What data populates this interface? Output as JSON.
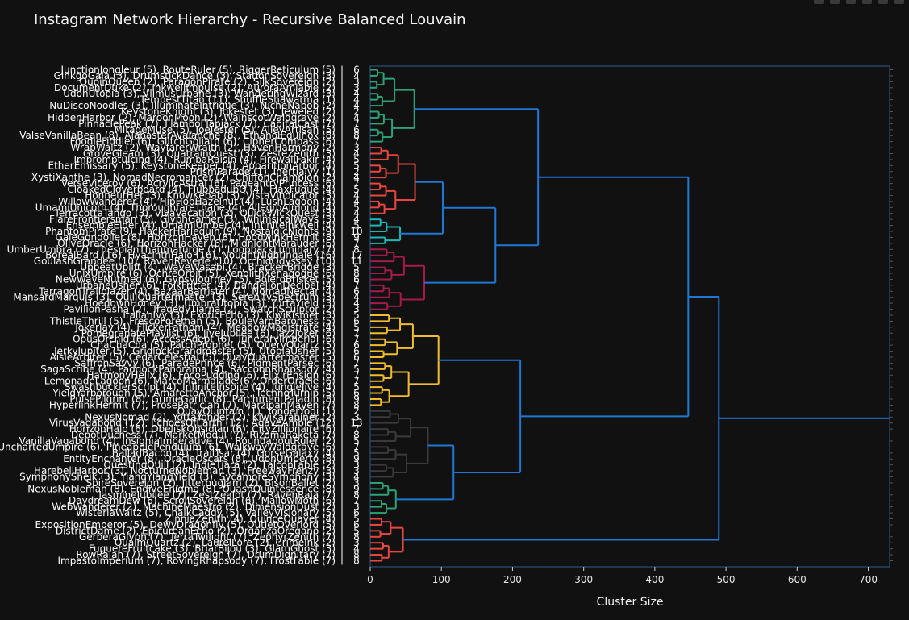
{
  "title": "Instagram Network Hierarchy - Recursive Balanced Louvain",
  "toolbar": {
    "icons": [
      "camera-icon",
      "zoom-icon",
      "pan-icon",
      "zoom-in-icon",
      "zoom-out-icon",
      "reset-axes-icon"
    ]
  },
  "chart_data": {
    "type": "dendrogram",
    "orientation": "horizontal",
    "xlabel": "Cluster Size",
    "xlim": [
      0,
      730
    ],
    "xticks": [
      0,
      100,
      200,
      300,
      400,
      500,
      600,
      700
    ],
    "colors": {
      "background": "#111111",
      "link": "#1f77d4",
      "green": "#2ca275",
      "red": "#e8463f",
      "teal": "#1eb7b7",
      "crimson": "#a31a4b",
      "yellow": "#f2bd2b",
      "dark": "#3a3a3a"
    },
    "leaves": [
      {
        "label": "JunctionJongleur (5), RouteRuler (5), RiggerReticulum (5)",
        "size": 6
      },
      {
        "label": "GinkgoGala (3), DrumstickDance (3), StationSovereign (3)",
        "size": 4
      },
      {
        "label": "QuoinQueen (2), ParagonPirate (2), SilkSovereign (2)",
        "size": 3
      },
      {
        "label": "DocumentDuke (2), InkwellImpulse (2), AuroraAmiable (2)",
        "size": 3
      },
      {
        "label": "UdonUtopia (3), VlimusUrbane (3), WanderingWizard (3)",
        "size": 4
      },
      {
        "label": "TempestTitan (11), ShuffleShawarma (1)",
        "size": 4
      },
      {
        "label": "NuDiscoNoodles (3), IlluminateIntrigue (3), NicheNabob (2)",
        "size": 4
      },
      {
        "label": "KeystoneKnight (3), Jokester (3), Jeweled (2)",
        "size": 2
      },
      {
        "label": "HiddenHarbor (2), MaroonMoon (2), WainscotWaldgrave (2)",
        "size": 4
      },
      {
        "label": "PinnaclePeak (7), FlamboFlapjack (7), CapitalCast (7)",
        "size": 7
      },
      {
        "label": "MirageMuse (5), JoeJester (5), AlleyArtisan (5)",
        "size": 6
      },
      {
        "label": "ValseVanillaBean (8), AlabasterAvalanche (8), EthanolEquinox (8)",
        "size": 8
      },
      {
        "label": "FoodieFiddler (6), GlitchGoliath (6), CipherCompass (6)",
        "size": 7
      },
      {
        "label": "WrapWaltz (2), WayfarerWraith (2), HavenHarmony (2)",
        "size": 3
      },
      {
        "label": "GroveGleam (3), QuatrainQuest (3), ZesteZenith (3)",
        "size": 4
      },
      {
        "label": "ImpromptuIcing (4), RumbaRaisin (4), FirewallFakir (4)",
        "size": 5
      },
      {
        "label": "EtherEmissary (5), KeystoneKeeper (4), ApparitionArbor (4)",
        "size": 5
      },
      {
        "label": "PrismParade (1), InertiaIvy (1)",
        "size": 2
      },
      {
        "label": "XystiXanthe (3), NomadNecromancer (2), ChiffonChampion (2)",
        "size": 4
      },
      {
        "label": "VerseViceroy (6), AcrylicAstral (6), PageantryPrincess (6)",
        "size": 7
      },
      {
        "label": "CloakedCloverboard (4), FlubbadubQ (4), FlaxFugue (4)",
        "size": 5
      },
      {
        "label": "HonneurHer (3), KnowKebab (3), VistaVindicator (3)",
        "size": 4
      },
      {
        "label": "WillowWanderer (4), HipHopHazelnut (4), LushLagoon (4)",
        "size": 4
      },
      {
        "label": "UmamiUnicorn (4), ThoroughfareThane (4), AllegroAlmond (4)",
        "size": 5
      },
      {
        "label": "TerracottaTango (3), VivaVacation (3), QuickWickQuest (3)",
        "size": 4
      },
      {
        "label": "FlareFrontiersman (3), GlyphGamer (3), WhimsicalWays (3)",
        "size": 4
      },
      {
        "label": "EnsembleElder (4), UmamiUmber (4), InfiniteInkwell (4)",
        "size": 5
      },
      {
        "label": "PhantomPirate (9), HackerHarlequin (9), NostalgicNights (9)",
        "size": 10
      },
      {
        "label": "GaleGondolier (8), HorizonHaven (8), HoodwinkHermit (8)",
        "size": 9
      },
      {
        "label": "OliveOracle (6), HorizonHacker (6), MidnightMarauder (6)",
        "size": 7
      },
      {
        "label": "UmberUmbra (7), ThespianThaumaturge (7), LoopbackLuminary (7)",
        "size": 8
      },
      {
        "label": "BorealBard (16), HyacinthHalo (16), NoughtNightingale (16)",
        "size": 17
      },
      {
        "label": "GoulashGrandee (10), RavenReverie (10), OrchidOdyssey (10)",
        "size": 11
      },
      {
        "label": "UpbeatUplift (4), WaveWasabi (4), BrackenBridge (3)",
        "size": 5
      },
      {
        "label": "UnixUmpire (6), OchreOrbit (5), XenolithXenagogue (6)",
        "size": 8
      },
      {
        "label": "NewWaveNutmeg (6), GypsyJourney (5), BoleroBrisket (5)",
        "size": 6
      },
      {
        "label": "UrbaneUsher (6), FolkFritter (4), DandelionDecibel (4)",
        "size": 7
      },
      {
        "label": "TarragonTrailblazer (4), BazaarBarrister (4), NomadNectar (4)",
        "size": 6
      },
      {
        "label": "MansardMarquis (3), QuillQuartermaster (3), SerenitySpectrum (3)",
        "size": 4
      },
      {
        "label": "HoedownHoney (3), UmbraUtopia (3), YurtaYield (3)",
        "size": 4
      },
      {
        "label": "PavilionPasha (2), TragedyTiarna (2), SwatchSculptor (2)",
        "size": 3
      },
      {
        "label": "ItalianIvy (3), ExoticEcho (3), KiwiKismet (3)",
        "size": 5
      },
      {
        "label": "ThistleThrill (5), FrescoForeman (5), BoulevardBaroness (5)",
        "size": 6
      },
      {
        "label": "JokerJay (4), FlickerFathom (4), MeadowMagistrate (4)",
        "size": 5
      },
      {
        "label": "PomegranatePlaylist (6), JiveJubilee (6), JazzJoker (6)",
        "size": 7
      },
      {
        "label": "OpusOrchid (6), AccessAdept (6), TuneraryImperial (6)",
        "size": 7
      },
      {
        "label": "ChaChaCha (5), PatchProphet (5), QueryQuartz (5)",
        "size": 6
      },
      {
        "label": "JerkyJupiter (5), GridlockGrandmaster (5), UtopiaUsher (5)",
        "size": 6
      },
      {
        "label": "AisleArbiter (5), CedarCelestial (5), QuayQuartermaster (5)",
        "size": 6
      },
      {
        "label": "SaffronSavvy (6), ParadePrince (6), PigmentParsec (6)",
        "size": 7
      },
      {
        "label": "SagaScribe (4), PaddockPanorama (4), RaccoonRhapsody (4)",
        "size": 5
      },
      {
        "label": "HarmonyHelix (6), FocoPudding (6), ElixirEnsign (6)",
        "size": 7
      },
      {
        "label": "LemonadeLagoon (6), MarcoMarmalade (6), OrderOracle (6)",
        "size": 7
      },
      {
        "label": "SwashbucklerScript (4), InfiniteInspire (4), JungleJive (4)",
        "size": 5
      },
      {
        "label": "YieldYarborough (5), AmarettoAnchor (5), TechnoTurnip (5)",
        "size": 6
      },
      {
        "label": "PulsePilgrim (8), GrimeGarlic (8), ParchmentPaladin (8)",
        "size": 9
      },
      {
        "label": "HyperlinkHermit (7), ProsePatrician (7), MarzipanMaven (7)",
        "size": 8
      },
      {
        "label": "QuayQuintain (1), YonderYogi (1)",
        "size": 2
      },
      {
        "label": "NexusNomad (2), YottaYonder (2), KiwiKarabiner (2)",
        "size": 3
      },
      {
        "label": "VirusVagabond (12), EchoesOfEarth (12), AgaveAmble (12)",
        "size": 13
      },
      {
        "label": "HorizonHalo (6), ObeliskObsidian (6), CityZillionaire (6)",
        "size": 7
      },
      {
        "label": "DepotDuchess (7), MarketModul (7), RizomaRaketa (7)",
        "size": 8
      },
      {
        "label": "VanillaVagabond (4), InsigniaImperative (4), RoundaboutRuler (2)",
        "size": 5
      },
      {
        "label": "UnchartedUmpire (6), PineapplePendulum (6), WalkwayWaldgrave (6)",
        "size": 7
      },
      {
        "label": "BalladBacon (4), TrailTsar (4), GorseGalaxy (4)",
        "size": 5
      },
      {
        "label": "EntityEnchanter (8), OracleOscars (8), UdonUmberto (8)",
        "size": 9
      },
      {
        "label": "QuestingQuill (2), IndieTiara (2), FalconFable (2)",
        "size": 3
      },
      {
        "label": "HarebellHarbor (3), NocturneNobleman (3), FreewayFrenzy (3)",
        "size": 3
      },
      {
        "label": "SymphonySheik (3), YiangYiangYield (3), SycamoreSymphony (3)",
        "size": 4
      },
      {
        "label": "SpireSovereign (2), JitterbugJam (2), BisonBallet (2)",
        "size": 3
      },
      {
        "label": "NexusNobleman (8), EndiveEnigma (8), QuashQuintessence (8)",
        "size": 9
      },
      {
        "label": "JasmineJubilee (7), ZestZealot (7), RavenRaja (7)",
        "size": 8
      },
      {
        "label": "DaydreamDew (6), ScrollSovereign (6), MallowMoth (6)",
        "size": 7
      },
      {
        "label": "WebWanderer (2), MachineMaestro (2), DimensionDust (2)",
        "size": 3
      },
      {
        "label": "WisteriaWaltz (5), ChalkCaddy (5), ValleyVisionary (5)",
        "size": 6
      },
      {
        "label": "ZinniaZenith (4), QuinceQuaver (4)",
        "size": 5
      },
      {
        "label": "ExpositionEmperor (5), DewyDragonfly (5), OutletOverlord (5)",
        "size": 6
      },
      {
        "label": "DistrictDame (2), EpicureanEcho (2), OrganzaOregano (2)",
        "size": 5
      },
      {
        "label": "GerberaGlyph (7), TerraTwilight (7), ZephyrZenith (7)",
        "size": 8
      },
      {
        "label": "QualmQuartz (2), LaurelLore (2), CrimeInk (2)",
        "size": 3
      },
      {
        "label": "FuguereFruitcake (3), BriarBijou (3), GlamGhost (3)",
        "size": 4
      },
      {
        "label": "RowRajah (7), StreetSovereign (7), DrumDignitary (7)",
        "size": 8
      },
      {
        "label": "ImpastoImperium (7), RovingRhapsody (7), FrostFable (7)",
        "size": 8
      }
    ],
    "groups": [
      {
        "name": "g1",
        "color": "green",
        "leaf_range": [
          0,
          12
        ],
        "height": 62
      },
      {
        "name": "g2",
        "color": "red",
        "leaf_range": [
          13,
          24
        ],
        "height": 63
      },
      {
        "name": "g3",
        "color": "teal",
        "leaf_range": [
          25,
          29
        ],
        "height": 42
      },
      {
        "name": "g4",
        "color": "crimson",
        "leaf_range": [
          30,
          40
        ],
        "height": 76
      },
      {
        "name": "g5",
        "color": "yellow",
        "leaf_range": [
          41,
          56
        ],
        "height": 96
      },
      {
        "name": "g6",
        "color": "dark",
        "leaf_range": [
          57,
          68
        ],
        "height": 81
      },
      {
        "name": "g7",
        "color": "green",
        "leaf_range": [
          69,
          74
        ],
        "height": 36
      },
      {
        "name": "g8",
        "color": "red",
        "leaf_range": [
          75,
          82
        ],
        "height": 46
      }
    ],
    "links": [
      {
        "a": "g2",
        "b": "g3",
        "id": "m1",
        "height": 102
      },
      {
        "a": "m1",
        "b": "g4",
        "id": "m2",
        "height": 176
      },
      {
        "a": "g1",
        "b": "m2",
        "id": "m3",
        "height": 236
      },
      {
        "a": "g6",
        "b": "g7",
        "id": "m4",
        "height": 117
      },
      {
        "a": "g5",
        "b": "m4",
        "id": "m5",
        "height": 211
      },
      {
        "a": "m3",
        "b": "m5",
        "id": "m6",
        "height": 447
      },
      {
        "a": "m6",
        "b": "g8",
        "id": "m7",
        "height": 490
      },
      {
        "a": "m7",
        "b": null,
        "id": "root",
        "height": 730
      }
    ]
  }
}
